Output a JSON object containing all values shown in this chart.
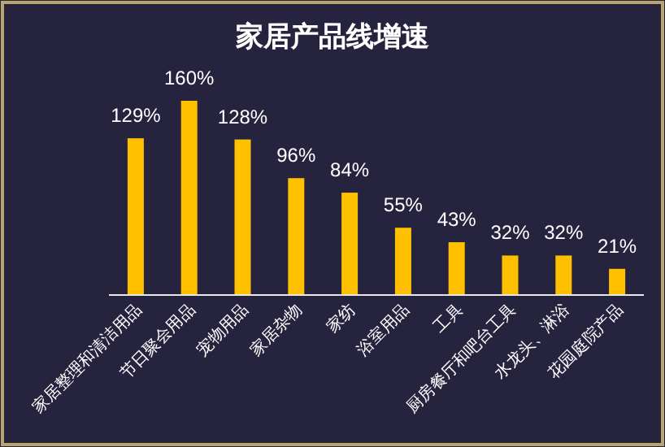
{
  "chart_data": {
    "type": "bar",
    "title": "家居产品线增速",
    "categories": [
      "家居整理和清洁用品",
      "节日聚会用品",
      "宠物用品",
      "家居杂物",
      "家纺",
      "浴室用品",
      "工具",
      "厨房餐厅和吧台工具",
      "水龙头、淋浴",
      "花园庭院产品"
    ],
    "values": [
      129,
      160,
      128,
      96,
      84,
      55,
      43,
      32,
      32,
      21
    ],
    "value_labels": [
      "129%",
      "160%",
      "128%",
      "96%",
      "84%",
      "55%",
      "43%",
      "32%",
      "32%",
      "21%"
    ],
    "color": "#ffc000"
  }
}
